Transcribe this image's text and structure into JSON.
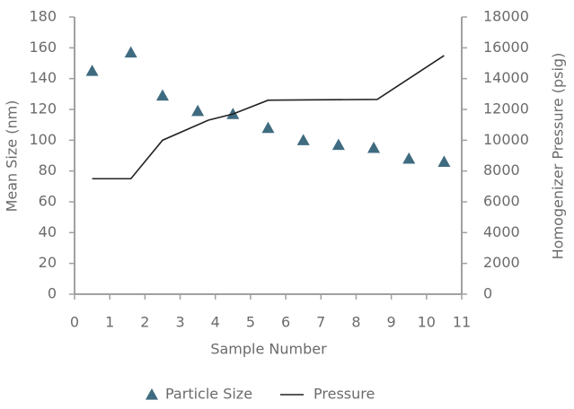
{
  "chart_data": {
    "type": "combo",
    "x_label": "Sample Number",
    "y_label": "Mean Size (nm)",
    "y2_label": "Homogenizer Pressure (psig)",
    "xlim": [
      0,
      11
    ],
    "xticks": [
      0,
      1,
      2,
      3,
      4,
      5,
      6,
      7,
      8,
      9,
      10,
      11
    ],
    "ylim": [
      0,
      180
    ],
    "yticks": [
      0,
      20,
      40,
      60,
      80,
      100,
      120,
      140,
      160,
      180
    ],
    "y2lim": [
      0,
      18000
    ],
    "y2ticks": [
      0,
      2000,
      4000,
      6000,
      8000,
      10000,
      12000,
      14000,
      16000,
      18000
    ],
    "series": [
      {
        "name": "Particle Size",
        "type": "scatter",
        "marker": "triangle",
        "color": "#3f6b80",
        "x": [
          0.5,
          1.6,
          2.5,
          3.5,
          4.5,
          5.5,
          6.5,
          7.5,
          8.5,
          9.5,
          10.5
        ],
        "values": [
          145,
          157,
          129,
          119,
          117,
          108,
          100,
          97,
          95,
          88,
          86
        ]
      },
      {
        "name": "Pressure",
        "type": "line",
        "axis": "y2",
        "color": "#222222",
        "x": [
          0.5,
          1.6,
          2.5,
          3.8,
          4.5,
          5.5,
          8.6,
          10.5
        ],
        "values": [
          7500,
          7500,
          10000,
          11300,
          11700,
          12600,
          12650,
          15500
        ]
      }
    ]
  }
}
